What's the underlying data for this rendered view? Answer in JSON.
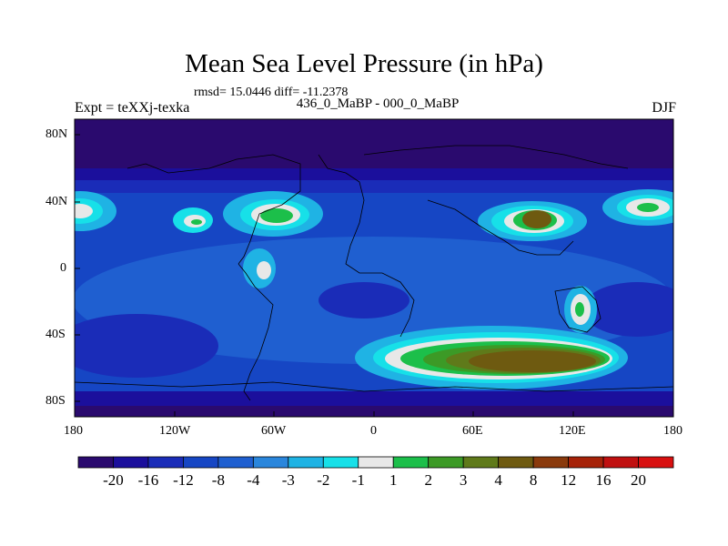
{
  "header": {
    "title": "Mean Sea Level Pressure (in hPa)",
    "stats": "rmsd= 15.0446 diff= -11.2378",
    "experiment": "Expt = teXXj-texka",
    "subtitle": "436_0_MaBP - 000_0_MaBP",
    "season": "DJF"
  },
  "axes": {
    "x_ticks": [
      "180",
      "120W",
      "60W",
      "0",
      "60E",
      "120E",
      "180"
    ],
    "y_ticks": [
      "80N",
      "40N",
      "0",
      "40S",
      "80S"
    ]
  },
  "colorbar": {
    "labels": [
      "-20",
      "-16",
      "-12",
      "-8",
      "-4",
      "-3",
      "-2",
      "-1",
      "1",
      "2",
      "3",
      "4",
      "8",
      "12",
      "16",
      "20"
    ],
    "colors": [
      "#2a0a6e",
      "#1b0f9c",
      "#1a2cb8",
      "#1646c4",
      "#1f5fd0",
      "#2a86dc",
      "#1fb3e4",
      "#17e0e8",
      "#e8e8e8",
      "#1cbf4a",
      "#3c9a26",
      "#5f7a1a",
      "#6e5a10",
      "#8a3a0c",
      "#a62208",
      "#c01010",
      "#d81010"
    ]
  }
}
